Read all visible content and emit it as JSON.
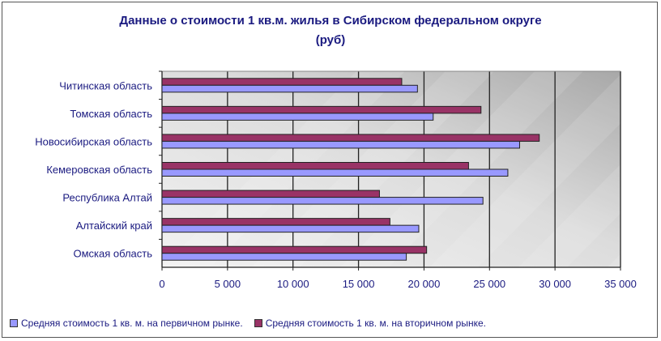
{
  "chart_data": {
    "type": "bar",
    "orientation": "horizontal",
    "title": "Данные о стоимости 1 кв.м. жилья в Сибирском федеральном округе (руб)",
    "title_lines": [
      "Данные о стоимости 1 кв.м. жилья в Сибирском федеральном округе",
      "(руб)"
    ],
    "categories": [
      "Читинская область",
      "Томская область",
      "Новосибирская область",
      "Кемеровская область",
      "Республика Алтай",
      "Алтайский край",
      "Омская область"
    ],
    "series": [
      {
        "name": "Средняя стоимость 1 кв. м. на первичном рынке.",
        "color": "#9999ff",
        "values": [
          19500,
          20700,
          27300,
          26400,
          24500,
          19600,
          18650
        ]
      },
      {
        "name": "Средняя стоимость 1 кв. м. на вторичном рынке.",
        "color": "#993366",
        "values": [
          18300,
          24350,
          28800,
          23400,
          16600,
          17400,
          20200
        ]
      }
    ],
    "xlim": [
      0,
      35000
    ],
    "xticks": [
      "0",
      "5 000",
      "10 000",
      "15 000",
      "20 000",
      "25 000",
      "30 000",
      "35 000"
    ],
    "grid": true,
    "legend": "bottom"
  }
}
